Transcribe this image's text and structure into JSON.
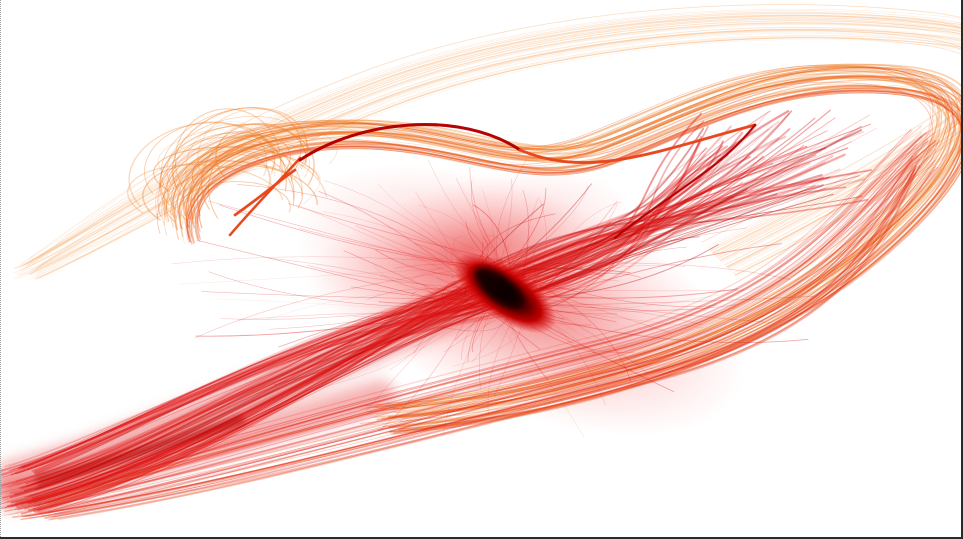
{
  "artwork": {
    "subject": "flow-field-render",
    "colors": {
      "background": "#ffffff",
      "faint_orange": "#f7a760",
      "orange": "#ef7a1e",
      "orange_red": "#e8461a",
      "red": "#e01010",
      "deep_red": "#b30000",
      "core": "#111111"
    }
  }
}
